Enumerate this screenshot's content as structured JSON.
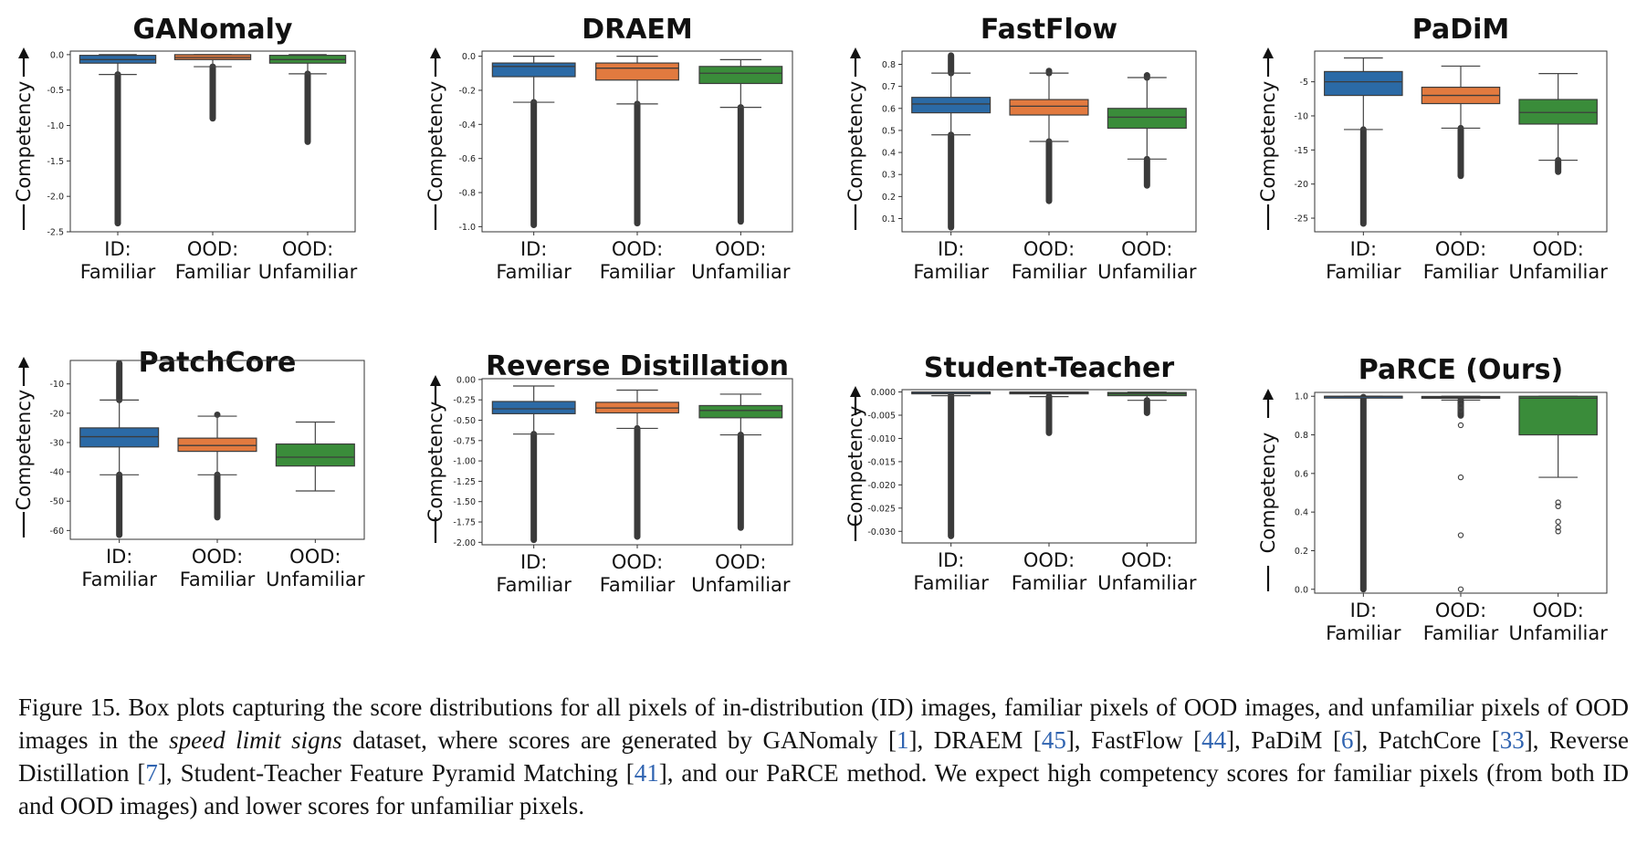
{
  "colors": {
    "id_familiar": "#2b6aa6",
    "ood_familiar": "#e27a3f",
    "ood_unfamiliar": "#3a8c3a",
    "caption_ref": "#2f63b0"
  },
  "chart_data": [
    {
      "type": "box",
      "title": "GANomaly",
      "ylabel": "Competency",
      "ylim": [
        -2.5,
        0.05
      ],
      "yticks": [
        0.0,
        -0.5,
        -1.0,
        -1.5,
        -2.0,
        -2.5
      ],
      "ytick_labels": [
        "0.0",
        "-0.5",
        "-1.0",
        "-1.5",
        "-2.0",
        "-2.5"
      ],
      "categories": [
        [
          "ID:",
          "Familiar"
        ],
        [
          "OOD:",
          "Familiar"
        ],
        [
          "OOD:",
          "Unfamiliar"
        ]
      ],
      "boxes": [
        {
          "q1": -0.12,
          "median": -0.07,
          "q3": -0.01,
          "whislo": -0.28,
          "whishi": 0.0,
          "fliers_low": [
            -0.28,
            -2.38
          ],
          "fliers_high": null
        },
        {
          "q1": -0.07,
          "median": -0.04,
          "q3": 0.0,
          "whislo": -0.17,
          "whishi": 0.0,
          "fliers_low": [
            -0.17,
            -0.9
          ],
          "fliers_high": null
        },
        {
          "q1": -0.12,
          "median": -0.07,
          "q3": -0.01,
          "whislo": -0.27,
          "whishi": 0.0,
          "fliers_low": [
            -0.27,
            -1.23
          ],
          "fliers_high": null
        }
      ]
    },
    {
      "type": "box",
      "title": "DRAEM",
      "ylabel": "Competency",
      "ylim": [
        -1.03,
        0.03
      ],
      "yticks": [
        0.0,
        -0.2,
        -0.4,
        -0.6,
        -0.8,
        -1.0
      ],
      "ytick_labels": [
        "0.0",
        "-0.2",
        "-0.4",
        "-0.6",
        "-0.8",
        "-1.0"
      ],
      "categories": [
        [
          "ID:",
          "Familiar"
        ],
        [
          "OOD:",
          "Familiar"
        ],
        [
          "OOD:",
          "Unfamiliar"
        ]
      ],
      "boxes": [
        {
          "q1": -0.12,
          "median": -0.06,
          "q3": -0.04,
          "whislo": -0.27,
          "whishi": 0.0,
          "fliers_low": [
            -0.27,
            -0.99
          ],
          "fliers_high": null
        },
        {
          "q1": -0.14,
          "median": -0.07,
          "q3": -0.04,
          "whislo": -0.28,
          "whishi": 0.0,
          "fliers_low": [
            -0.28,
            -0.98
          ],
          "fliers_high": null
        },
        {
          "q1": -0.16,
          "median": -0.1,
          "q3": -0.06,
          "whislo": -0.3,
          "whishi": -0.02,
          "fliers_low": [
            -0.3,
            -0.97
          ],
          "fliers_high": null
        }
      ]
    },
    {
      "type": "box",
      "title": "FastFlow",
      "ylabel": "Competency",
      "ylim": [
        0.04,
        0.86
      ],
      "yticks": [
        0.8,
        0.7,
        0.6,
        0.5,
        0.4,
        0.3,
        0.2,
        0.1
      ],
      "ytick_labels": [
        "0.8",
        "0.7",
        "0.6",
        "0.5",
        "0.4",
        "0.3",
        "0.2",
        "0.1"
      ],
      "categories": [
        [
          "ID:",
          "Familiar"
        ],
        [
          "OOD:",
          "Familiar"
        ],
        [
          "OOD:",
          "Unfamiliar"
        ]
      ],
      "boxes": [
        {
          "q1": 0.58,
          "median": 0.62,
          "q3": 0.65,
          "whislo": 0.48,
          "whishi": 0.76,
          "fliers_low": [
            0.48,
            0.06
          ],
          "fliers_high": [
            0.76,
            0.84
          ]
        },
        {
          "q1": 0.57,
          "median": 0.61,
          "q3": 0.64,
          "whislo": 0.45,
          "whishi": 0.76,
          "fliers_low": [
            0.45,
            0.18
          ],
          "fliers_high": [
            0.76,
            0.77
          ]
        },
        {
          "q1": 0.51,
          "median": 0.56,
          "q3": 0.6,
          "whislo": 0.37,
          "whishi": 0.74,
          "fliers_low": [
            0.37,
            0.25
          ],
          "fliers_high": [
            0.74,
            0.75
          ]
        }
      ]
    },
    {
      "type": "box",
      "title": "PaDiM",
      "ylabel": "Competency",
      "ylim": [
        -27,
        -0.5
      ],
      "yticks": [
        -5,
        -10,
        -15,
        -20,
        -25
      ],
      "ytick_labels": [
        "-5",
        "-10",
        "-15",
        "-20",
        "-25"
      ],
      "categories": [
        [
          "ID:",
          "Familiar"
        ],
        [
          "OOD:",
          "Familiar"
        ],
        [
          "OOD:",
          "Unfamiliar"
        ]
      ],
      "boxes": [
        {
          "q1": -7.0,
          "median": -5.0,
          "q3": -3.5,
          "whislo": -12.0,
          "whishi": -1.5,
          "fliers_low": [
            -12.0,
            -25.8
          ],
          "fliers_high": null
        },
        {
          "q1": -8.2,
          "median": -7.0,
          "q3": -5.8,
          "whislo": -11.8,
          "whishi": -2.7,
          "fliers_low": [
            -11.8,
            -18.8
          ],
          "fliers_high": null
        },
        {
          "q1": -11.2,
          "median": -9.5,
          "q3": -7.6,
          "whislo": -16.5,
          "whishi": -3.8,
          "fliers_low": [
            -16.5,
            -18.2
          ],
          "fliers_high": null
        }
      ]
    },
    {
      "type": "box",
      "title": "PatchCore",
      "ylabel": "Competency",
      "ylim": [
        -63,
        -2
      ],
      "yticks": [
        -10,
        -20,
        -30,
        -40,
        -50,
        -60
      ],
      "ytick_labels": [
        "-10",
        "-20",
        "-30",
        "-40",
        "-50",
        "-60"
      ],
      "categories": [
        [
          "ID:",
          "Familiar"
        ],
        [
          "OOD:",
          "Familiar"
        ],
        [
          "OOD:",
          "Unfamiliar"
        ]
      ],
      "boxes": [
        {
          "q1": -31.5,
          "median": -28.0,
          "q3": -25.0,
          "whislo": -41.0,
          "whishi": -15.5,
          "fliers_low": [
            -41.0,
            -61.5
          ],
          "fliers_high": [
            -15.5,
            -3.0
          ]
        },
        {
          "q1": -33.0,
          "median": -31.0,
          "q3": -28.5,
          "whislo": -41.0,
          "whishi": -21.0,
          "fliers_low": [
            -41.0,
            -55.5
          ],
          "fliers_high": [
            -20.5,
            -20.5
          ]
        },
        {
          "q1": -38.0,
          "median": -35.0,
          "q3": -30.5,
          "whislo": -46.5,
          "whishi": -23.0,
          "fliers_low": null,
          "fliers_high": null
        }
      ]
    },
    {
      "type": "box",
      "title": "Reverse Distillation",
      "ylabel": "Competency",
      "ylim": [
        -2.03,
        0.01
      ],
      "yticks": [
        0.0,
        -0.25,
        -0.5,
        -0.75,
        -1.0,
        -1.25,
        -1.5,
        -1.75,
        -2.0
      ],
      "ytick_labels": [
        "0.00",
        "-0.25",
        "-0.50",
        "-0.75",
        "-1.00",
        "-1.25",
        "-1.50",
        "-1.75",
        "-2.00"
      ],
      "categories": [
        [
          "ID:",
          "Familiar"
        ],
        [
          "OOD:",
          "Familiar"
        ],
        [
          "OOD:",
          "Unfamiliar"
        ]
      ],
      "boxes": [
        {
          "q1": -0.42,
          "median": -0.36,
          "q3": -0.27,
          "whislo": -0.67,
          "whishi": -0.08,
          "fliers_low": [
            -0.67,
            -1.97
          ],
          "fliers_high": null
        },
        {
          "q1": -0.41,
          "median": -0.35,
          "q3": -0.28,
          "whislo": -0.6,
          "whishi": -0.13,
          "fliers_low": [
            -0.6,
            -1.93
          ],
          "fliers_high": null
        },
        {
          "q1": -0.47,
          "median": -0.38,
          "q3": -0.32,
          "whislo": -0.68,
          "whishi": -0.18,
          "fliers_low": [
            -0.68,
            -1.82
          ],
          "fliers_high": null
        }
      ]
    },
    {
      "type": "box",
      "title": "Student-Teacher",
      "ylabel": "Competency",
      "ylim": [
        -0.0325,
        0.0005
      ],
      "yticks": [
        0.0,
        -0.005,
        -0.01,
        -0.015,
        -0.02,
        -0.025,
        -0.03
      ],
      "ytick_labels": [
        "0.000",
        "-0.005",
        "-0.010",
        "-0.015",
        "-0.020",
        "-0.025",
        "-0.030"
      ],
      "categories": [
        [
          "ID:",
          "Familiar"
        ],
        [
          "OOD:",
          "Familiar"
        ],
        [
          "OOD:",
          "Unfamiliar"
        ]
      ],
      "boxes": [
        {
          "q1": -0.0003,
          "median": -0.0001,
          "q3": 0.0,
          "whislo": -0.0008,
          "whishi": 0.0,
          "fliers_low": [
            -0.0008,
            -0.031
          ],
          "fliers_high": null
        },
        {
          "q1": -0.0004,
          "median": -0.0002,
          "q3": 0.0,
          "whislo": -0.001,
          "whishi": 0.0,
          "fliers_low": [
            -0.001,
            -0.0088
          ],
          "fliers_high": null
        },
        {
          "q1": -0.0008,
          "median": -0.0004,
          "q3": -0.0001,
          "whislo": -0.0018,
          "whishi": 0.0,
          "fliers_low": [
            -0.0018,
            -0.0045
          ],
          "fliers_high": null
        }
      ]
    },
    {
      "type": "box",
      "title": "PaRCE (Ours)",
      "ylabel": "Competency",
      "ylim": [
        -0.02,
        1.02
      ],
      "yticks": [
        1.0,
        0.8,
        0.6,
        0.4,
        0.2,
        0.0
      ],
      "ytick_labels": [
        "1.0",
        "0.8",
        "0.6",
        "0.4",
        "0.2",
        "0.0"
      ],
      "categories": [
        [
          "ID:",
          "Familiar"
        ],
        [
          "OOD:",
          "Familiar"
        ],
        [
          "OOD:",
          "Unfamiliar"
        ]
      ],
      "boxes": [
        {
          "q1": 0.998,
          "median": 0.999,
          "q3": 1.0,
          "whislo": 0.996,
          "whishi": 1.0,
          "fliers_low": [
            0.996,
            0.0
          ],
          "fliers_high": null
        },
        {
          "q1": 0.99,
          "median": 0.995,
          "q3": 0.999,
          "whislo": 0.98,
          "whishi": 1.0,
          "fliers_low": [
            0.98,
            0.9
          ],
          "fliers_high": null,
          "outliers": [
            0.95,
            0.93,
            0.85,
            0.58,
            0.28,
            0.0
          ]
        },
        {
          "q1": 0.8,
          "median": 0.99,
          "q3": 1.0,
          "whislo": 0.58,
          "whishi": 1.0,
          "fliers_low": null,
          "fliers_high": null,
          "outliers": [
            0.45,
            0.43,
            0.35,
            0.32,
            0.3
          ]
        }
      ]
    }
  ],
  "caption": {
    "label": "Figure 15.",
    "parts": [
      {
        "text": " Box plots capturing the score distributions for all pixels of in-distribution (ID) images, familiar pixels of OOD images, and unfamiliar pixels of OOD images in the ",
        "style": "normal"
      },
      {
        "text": "speed limit signs",
        "style": "em"
      },
      {
        "text": " dataset, where scores are generated by GANomaly [",
        "style": "normal"
      },
      {
        "text": "1",
        "style": "ref"
      },
      {
        "text": "], DRAEM [",
        "style": "normal"
      },
      {
        "text": "45",
        "style": "ref"
      },
      {
        "text": "], FastFlow [",
        "style": "normal"
      },
      {
        "text": "44",
        "style": "ref"
      },
      {
        "text": "], PaDiM [",
        "style": "normal"
      },
      {
        "text": "6",
        "style": "ref"
      },
      {
        "text": "], PatchCore [",
        "style": "normal"
      },
      {
        "text": "33",
        "style": "ref"
      },
      {
        "text": "], Reverse Distillation [",
        "style": "normal"
      },
      {
        "text": "7",
        "style": "ref"
      },
      {
        "text": "], Student-Teacher Feature Pyramid Matching [",
        "style": "normal"
      },
      {
        "text": "41",
        "style": "ref"
      },
      {
        "text": "], and our PaRCE method. We expect high competency scores for familiar pixels (from both ID and OOD images) and lower scores for unfamiliar pixels.",
        "style": "normal"
      }
    ]
  }
}
